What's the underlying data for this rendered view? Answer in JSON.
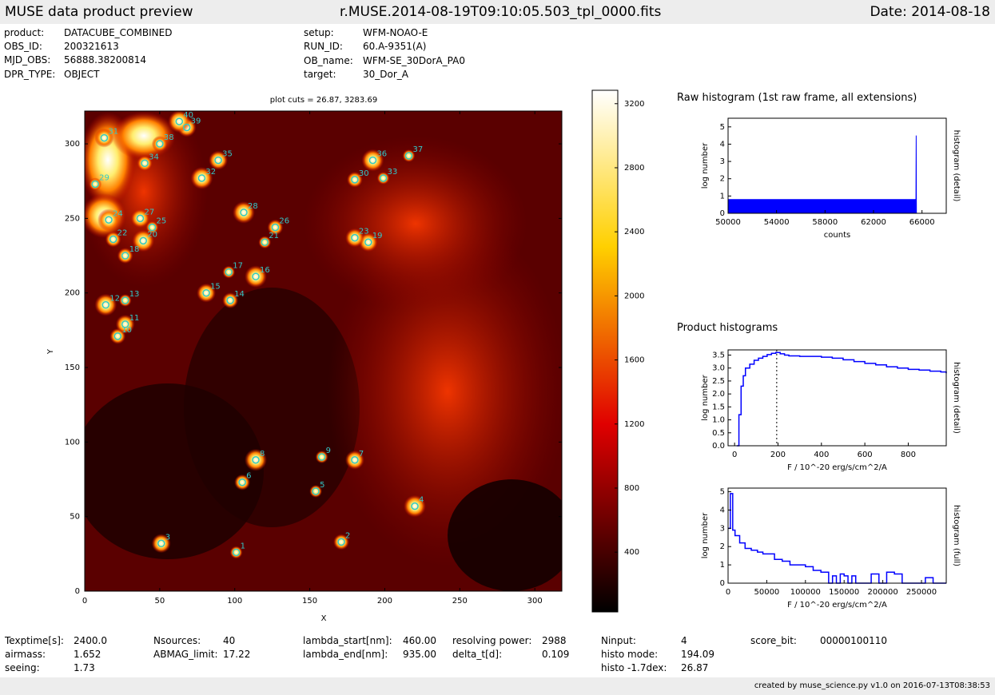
{
  "header": {
    "left_title": "MUSE data product preview",
    "center_title": "r.MUSE.2014-08-19T09:10:05.503_tpl_0000.fits",
    "date_label": "Date: 2014-08-18"
  },
  "info": [
    {
      "label": "product:",
      "value": "DATACUBE_COMBINED"
    },
    {
      "label": "OBS_ID:",
      "value": "200321613"
    },
    {
      "label": "MJD_OBS:",
      "value": "56888.38200814"
    },
    {
      "label": "DPR_TYPE:",
      "value": "OBJECT"
    },
    {
      "label": "setup:",
      "value": "WFM-NOAO-E"
    },
    {
      "label": "RUN_ID:",
      "value": "60.A-9351(A)"
    },
    {
      "label": "OB_name:",
      "value": "WFM-SE_30DorA_PA0"
    },
    {
      "label": "target:",
      "value": "30_Dor_A"
    }
  ],
  "stats": [
    {
      "label": "Texptime[s]:",
      "value": "2400.0"
    },
    {
      "label": "airmass:",
      "value": "1.652"
    },
    {
      "label": "seeing:",
      "value": "1.73"
    },
    {
      "label": "Nsources:",
      "value": "40"
    },
    {
      "label": "ABMAG_limit:",
      "value": "17.22"
    },
    {
      "label": "lambda_start[nm]:",
      "value": "460.00"
    },
    {
      "label": "lambda_end[nm]:",
      "value": "935.00"
    },
    {
      "label": "resolving power:",
      "value": "2988"
    },
    {
      "label": "delta_t[d]:",
      "value": "0.109"
    },
    {
      "label": "Ninput:",
      "value": "4"
    },
    {
      "label": "histo mode:",
      "value": "194.09"
    },
    {
      "label": "histo -1.7dex:",
      "value": "26.87"
    },
    {
      "label": "score_bit:",
      "value": "00000100110"
    }
  ],
  "footer": {
    "text": "created by muse_science.py v1.0 on 2016-07-13T08:38:53"
  },
  "colors": {
    "bar_bg": "#ededed",
    "marker": "#33c8c8",
    "hist_line": "#0000ff"
  },
  "chart_data": [
    {
      "type": "heatmap",
      "title": "plot cuts = 26.87, 3283.69",
      "xlabel": "X",
      "ylabel": "Y",
      "xlim": [
        0,
        318
      ],
      "ylim": [
        0,
        322
      ],
      "xticks": [
        0,
        50,
        100,
        150,
        200,
        250,
        300
      ],
      "yticks": [
        0,
        50,
        100,
        150,
        200,
        250,
        300
      ],
      "colorbar": {
        "min": 26.87,
        "max": 3283.69,
        "ticks": [
          400,
          800,
          1200,
          1600,
          2000,
          2400,
          2800,
          3200
        ],
        "colormap": "hot"
      },
      "sources": [
        {
          "id": "1",
          "x": 101,
          "y": 26
        },
        {
          "id": "2",
          "x": 171,
          "y": 33
        },
        {
          "id": "3",
          "x": 51,
          "y": 32
        },
        {
          "id": "4",
          "x": 220,
          "y": 57
        },
        {
          "id": "5",
          "x": 154,
          "y": 67
        },
        {
          "id": "6",
          "x": 105,
          "y": 73
        },
        {
          "id": "7",
          "x": 180,
          "y": 88
        },
        {
          "id": "8",
          "x": 114,
          "y": 88
        },
        {
          "id": "9",
          "x": 158,
          "y": 90
        },
        {
          "id": "10",
          "x": 22,
          "y": 171
        },
        {
          "id": "11",
          "x": 27,
          "y": 179
        },
        {
          "id": "12",
          "x": 14,
          "y": 192
        },
        {
          "id": "13",
          "x": 27,
          "y": 195
        },
        {
          "id": "14",
          "x": 97,
          "y": 195
        },
        {
          "id": "15",
          "x": 81,
          "y": 200
        },
        {
          "id": "16",
          "x": 114,
          "y": 211
        },
        {
          "id": "17",
          "x": 96,
          "y": 214
        },
        {
          "id": "18",
          "x": 27,
          "y": 225
        },
        {
          "id": "19",
          "x": 189,
          "y": 234
        },
        {
          "id": "20",
          "x": 39,
          "y": 235
        },
        {
          "id": "21",
          "x": 120,
          "y": 234
        },
        {
          "id": "22",
          "x": 19,
          "y": 236
        },
        {
          "id": "23",
          "x": 180,
          "y": 237
        },
        {
          "id": "24",
          "x": 16,
          "y": 249
        },
        {
          "id": "25",
          "x": 45,
          "y": 244
        },
        {
          "id": "26",
          "x": 127,
          "y": 244
        },
        {
          "id": "27",
          "x": 37,
          "y": 250
        },
        {
          "id": "28",
          "x": 106,
          "y": 254
        },
        {
          "id": "29",
          "x": 7,
          "y": 273
        },
        {
          "id": "30",
          "x": 180,
          "y": 276
        },
        {
          "id": "31",
          "x": 13,
          "y": 304
        },
        {
          "id": "32",
          "x": 78,
          "y": 277
        },
        {
          "id": "33",
          "x": 199,
          "y": 277
        },
        {
          "id": "34",
          "x": 40,
          "y": 287
        },
        {
          "id": "35",
          "x": 89,
          "y": 289
        },
        {
          "id": "36",
          "x": 192,
          "y": 289
        },
        {
          "id": "37",
          "x": 216,
          "y": 292
        },
        {
          "id": "38",
          "x": 50,
          "y": 300
        },
        {
          "id": "39",
          "x": 68,
          "y": 311
        },
        {
          "id": "40",
          "x": 63,
          "y": 315
        }
      ]
    },
    {
      "type": "line",
      "title": "Raw histogram (1st raw frame, all extensions)",
      "xlabel": "counts",
      "ylabel": "log number",
      "ylabel_right": "histogram (detail)",
      "xlim": [
        50000,
        68000
      ],
      "ylim": [
        0,
        5.5
      ],
      "xticks": [
        50000,
        54000,
        58000,
        62000,
        66000
      ],
      "yticks": [
        0,
        1,
        2,
        3,
        4,
        5
      ],
      "series": [
        {
          "x": [
            50000,
            65500,
            65520,
            65540,
            65560
          ],
          "y": [
            0.8,
            0.8,
            4.5,
            0,
            0
          ]
        }
      ]
    },
    {
      "type": "line",
      "title": "Product histograms",
      "xlabel": "F / 10^-20 erg/s/cm^2/A",
      "ylabel": "log number",
      "ylabel_right": "histogram (detail)",
      "xlim": [
        -30,
        975
      ],
      "ylim": [
        0,
        3.7
      ],
      "xticks": [
        0,
        200,
        400,
        600,
        800
      ],
      "yticks": [
        0.0,
        0.5,
        1.0,
        1.5,
        2.0,
        2.5,
        3.0,
        3.5
      ],
      "marker_x": 194.09,
      "series": [
        {
          "x": [
            10,
            20,
            30,
            40,
            50,
            70,
            90,
            110,
            130,
            150,
            170,
            190,
            210,
            230,
            250,
            300,
            350,
            400,
            450,
            500,
            550,
            600,
            650,
            700,
            750,
            800,
            850,
            900,
            950,
            975
          ],
          "y": [
            0.0,
            1.2,
            2.3,
            2.7,
            3.0,
            3.15,
            3.3,
            3.38,
            3.45,
            3.52,
            3.57,
            3.6,
            3.55,
            3.5,
            3.47,
            3.45,
            3.45,
            3.42,
            3.38,
            3.32,
            3.25,
            3.18,
            3.12,
            3.05,
            3.0,
            2.95,
            2.92,
            2.88,
            2.85,
            2.8
          ]
        }
      ]
    },
    {
      "type": "line",
      "xlabel": "F / 10^-20 erg/s/cm^2/A",
      "ylabel": "log number",
      "ylabel_right": "histogram (full)",
      "xlim": [
        0,
        282000
      ],
      "ylim": [
        0,
        5.2
      ],
      "xticks": [
        0,
        50000,
        100000,
        150000,
        200000,
        250000
      ],
      "yticks": [
        0,
        1,
        2,
        3,
        4,
        5
      ],
      "series": [
        {
          "x": [
            0,
            3000,
            6000,
            9000,
            15000,
            22000,
            30000,
            38000,
            45000,
            52000,
            60000,
            70000,
            80000,
            90000,
            100000,
            110000,
            120000,
            130000,
            135000,
            140000,
            145000,
            150000,
            155000,
            160000,
            165000,
            175000,
            185000,
            195000,
            205000,
            215000,
            225000,
            235000,
            245000,
            255000,
            265000,
            282000
          ],
          "y": [
            3.0,
            4.9,
            2.9,
            2.6,
            2.2,
            1.9,
            1.8,
            1.7,
            1.6,
            1.6,
            1.3,
            1.2,
            1.0,
            1.0,
            0.9,
            0.7,
            0.6,
            0.0,
            0.4,
            0.0,
            0.5,
            0.4,
            0.0,
            0.4,
            0.0,
            0.0,
            0.5,
            0.0,
            0.6,
            0.5,
            0.0,
            0.0,
            0.0,
            0.3,
            0.0,
            0.0
          ]
        }
      ]
    }
  ]
}
